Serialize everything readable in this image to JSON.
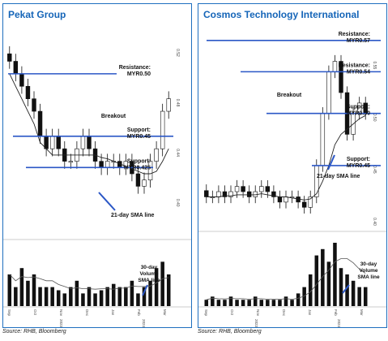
{
  "colors": {
    "accent": "#1565b8",
    "level_line": "#2b57c6",
    "candle_up": "#ffffff",
    "candle_down": "#111111",
    "sma": "#222222",
    "volume": "#111111"
  },
  "chart_data": [
    {
      "type": "candlestick",
      "title": "Pekat Group",
      "source": "Source: RHB, Bloomberg",
      "price_ylim": [
        0.37,
        0.535
      ],
      "price_ticks": [
        "0.52",
        "0.48",
        "0.44",
        "0.40"
      ],
      "x_ticks": [
        "Sep",
        "Oct",
        "Nov",
        "Dec",
        "Jan",
        "Feb",
        "Mar"
      ],
      "year_labels": [
        "2023",
        "2024"
      ],
      "close": [
        0.51,
        0.5,
        0.49,
        0.48,
        0.47,
        0.45,
        0.44,
        0.45,
        0.44,
        0.43,
        0.43,
        0.44,
        0.45,
        0.44,
        0.43,
        0.425,
        0.43,
        0.43,
        0.425,
        0.43,
        0.42,
        0.41,
        0.415,
        0.43,
        0.44,
        0.47,
        0.48
      ],
      "sma": [
        0.5,
        0.49,
        0.48,
        0.47,
        0.46,
        0.445,
        0.44,
        0.435,
        0.435,
        0.435,
        0.435,
        0.435,
        0.435,
        0.435,
        0.435,
        0.433,
        0.432,
        0.43,
        0.428,
        0.426,
        0.424,
        0.422,
        0.42,
        0.42,
        0.422,
        0.43,
        0.44
      ],
      "volume": [
        0.5,
        0.3,
        0.6,
        0.4,
        0.5,
        0.3,
        0.3,
        0.3,
        0.25,
        0.2,
        0.3,
        0.4,
        0.2,
        0.3,
        0.2,
        0.25,
        0.3,
        0.35,
        0.3,
        0.3,
        0.4,
        0.2,
        0.3,
        0.4,
        0.6,
        0.7,
        0.5
      ],
      "levels": [
        {
          "kind": "resistance",
          "value": 0.5,
          "label1": "Resistance:",
          "label2": "MYR0.50"
        },
        {
          "kind": "support",
          "value": 0.45,
          "label1": "Support:",
          "label2": "MYR0.45"
        },
        {
          "kind": "support",
          "value": 0.425,
          "label1": "Support:",
          "label2": "MYR0.425"
        }
      ],
      "breakout_label": "Breakout",
      "sma_label": "21-day SMA line",
      "volume_label": [
        "30-day",
        "Volume",
        "SMA line"
      ]
    },
    {
      "type": "candlestick",
      "title": "Cosmos Technology International",
      "source": "Source: RHB, Bloomberg",
      "price_ylim": [
        0.39,
        0.58
      ],
      "price_ticks": [
        "0.55",
        "0.50",
        "0.45",
        "0.40"
      ],
      "x_ticks": [
        "Sep",
        "Oct",
        "Nov",
        "Dec",
        "Jan",
        "Feb",
        "Mar"
      ],
      "year_labels": [
        "2023",
        "2024"
      ],
      "close": [
        0.42,
        0.42,
        0.425,
        0.42,
        0.425,
        0.43,
        0.425,
        0.42,
        0.425,
        0.43,
        0.425,
        0.42,
        0.415,
        0.42,
        0.42,
        0.415,
        0.41,
        0.42,
        0.45,
        0.5,
        0.54,
        0.55,
        0.52,
        0.48,
        0.5,
        0.51,
        0.5
      ],
      "sma": [
        0.42,
        0.42,
        0.42,
        0.421,
        0.421,
        0.422,
        0.422,
        0.422,
        0.422,
        0.423,
        0.422,
        0.421,
        0.42,
        0.42,
        0.419,
        0.418,
        0.417,
        0.418,
        0.423,
        0.435,
        0.45,
        0.47,
        0.48,
        0.485,
        0.49,
        0.495,
        0.498
      ],
      "volume": [
        0.1,
        0.15,
        0.1,
        0.1,
        0.15,
        0.1,
        0.1,
        0.1,
        0.15,
        0.1,
        0.1,
        0.1,
        0.1,
        0.15,
        0.1,
        0.2,
        0.3,
        0.5,
        0.8,
        0.9,
        0.7,
        1.0,
        0.6,
        0.5,
        0.4,
        0.3,
        0.3
      ],
      "levels": [
        {
          "kind": "resistance",
          "value": 0.57,
          "label1": "Resistance:",
          "label2": "MYR0.57"
        },
        {
          "kind": "resistance",
          "value": 0.54,
          "label1": "Resistance:",
          "label2": "MYR0.54"
        },
        {
          "kind": "support",
          "value": 0.5,
          "label1": "Support:",
          "label2": "MYR0.50"
        },
        {
          "kind": "support",
          "value": 0.45,
          "label1": "Support:",
          "label2": "MYR0.45"
        }
      ],
      "breakout_label": "Breakout",
      "sma_label": "21-day SMA line",
      "volume_label": [
        "30-day",
        "Volume",
        "SMA line"
      ]
    }
  ]
}
